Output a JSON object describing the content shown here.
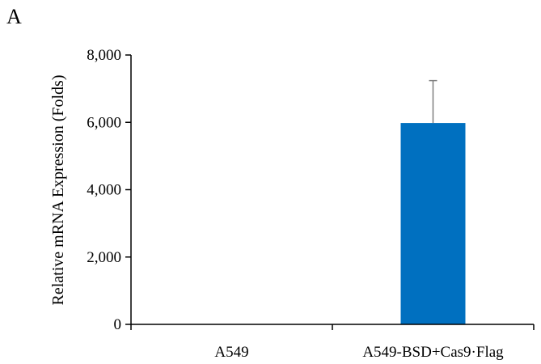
{
  "panel_label": "A",
  "chart_data": {
    "type": "bar",
    "categories": [
      "A549",
      "A549-BSD+Cas9·Flag"
    ],
    "values": [
      0,
      5980
    ],
    "error_upper": [
      0,
      1260
    ],
    "ylabel": "Relative mRNA Expression (Folds)",
    "xlabel": "",
    "ylim": [
      0,
      8000
    ],
    "yticks": [
      0,
      2000,
      4000,
      6000,
      8000
    ],
    "ytick_labels": [
      "0",
      "2,000",
      "4,000",
      "6,000",
      "8,000"
    ],
    "grid": false,
    "bar_color": "#0070c0",
    "error_bar_color": "#7f7f7f"
  }
}
